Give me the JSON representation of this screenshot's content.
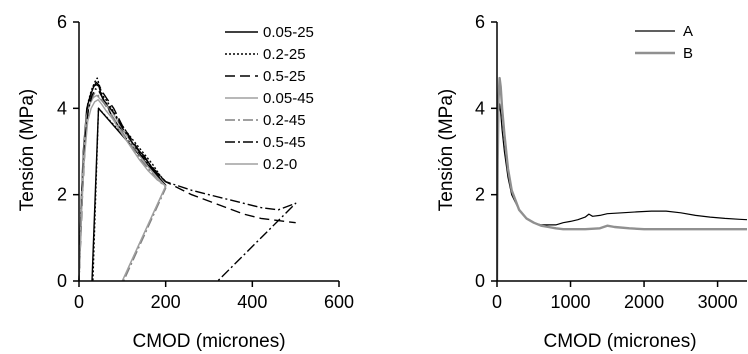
{
  "chart_data": [
    {
      "type": "line",
      "xlabel": "CMOD (micrones)",
      "ylabel": "Tensión (MPa)",
      "xlim": [
        0,
        600
      ],
      "ylim": [
        0,
        6
      ],
      "xticks": [
        0,
        200,
        400,
        600
      ],
      "yticks": [
        0,
        2,
        4,
        6
      ],
      "grid": false,
      "legend": "top-right",
      "series": [
        {
          "name": "0.05-25",
          "color": "#000000",
          "dash": "solid",
          "x": [
            0,
            5,
            10,
            18,
            26,
            34,
            40,
            45,
            50,
            56,
            64,
            72,
            90,
            110,
            130,
            150,
            170,
            185,
            190,
            195,
            200,
            45,
            30
          ],
          "y": [
            0,
            1.8,
            3.0,
            4.0,
            4.3,
            4.5,
            4.6,
            4.55,
            4.35,
            4.2,
            4.1,
            3.9,
            3.6,
            3.4,
            3.1,
            2.9,
            2.6,
            2.4,
            2.3,
            2.25,
            2.22,
            4.0,
            0
          ]
        },
        {
          "name": "0.2-25",
          "color": "#000000",
          "dash": "2,2",
          "x": [
            0,
            6,
            12,
            20,
            28,
            36,
            42,
            48,
            54,
            62,
            72,
            90,
            110,
            130,
            150,
            170,
            190,
            200,
            45,
            32
          ],
          "y": [
            0,
            1.9,
            3.2,
            4.1,
            4.4,
            4.6,
            4.7,
            4.5,
            4.3,
            4.2,
            4.05,
            3.75,
            3.45,
            3.2,
            2.95,
            2.7,
            2.4,
            2.3,
            4.0,
            0
          ]
        },
        {
          "name": "0.5-25",
          "color": "#000000",
          "dash": "10,5",
          "x": [
            0,
            8,
            16,
            24,
            32,
            40,
            48,
            56,
            66,
            80,
            100,
            120,
            140,
            160,
            180,
            200,
            230,
            260,
            300,
            340,
            380,
            420,
            460,
            500
          ],
          "y": [
            0,
            2.0,
            3.5,
            4.2,
            4.5,
            4.55,
            4.5,
            4.35,
            4.2,
            4.0,
            3.6,
            3.3,
            3.0,
            2.75,
            2.5,
            2.3,
            2.15,
            2.0,
            1.85,
            1.7,
            1.55,
            1.45,
            1.4,
            1.35
          ]
        },
        {
          "name": "0.05-45",
          "color": "#a0a0a0",
          "dash": "solid",
          "x": [
            0,
            5,
            10,
            17,
            25,
            33,
            41,
            50,
            60,
            75,
            95,
            115,
            135,
            155,
            175,
            195,
            200,
            100
          ],
          "y": [
            0,
            1.7,
            2.9,
            3.8,
            4.1,
            4.25,
            4.3,
            4.2,
            4.1,
            3.95,
            3.6,
            3.3,
            3.0,
            2.7,
            2.45,
            2.25,
            2.2,
            0
          ]
        },
        {
          "name": "0.2-45",
          "color": "#808080",
          "dash": "10,3,2,3",
          "x": [
            0,
            6,
            12,
            20,
            28,
            36,
            44,
            52,
            62,
            78,
            100,
            120,
            140,
            160,
            180,
            198,
            200,
            103
          ],
          "y": [
            0,
            1.8,
            3.0,
            3.9,
            4.2,
            4.35,
            4.3,
            4.2,
            4.05,
            3.8,
            3.45,
            3.15,
            2.85,
            2.6,
            2.35,
            2.2,
            2.15,
            0
          ]
        },
        {
          "name": "0.5-45",
          "color": "#000000",
          "dash": "10,3,2,3",
          "x": [
            0,
            7,
            14,
            22,
            30,
            38,
            46,
            54,
            64,
            80,
            100,
            120,
            140,
            160,
            180,
            200,
            230,
            260,
            300,
            340,
            380,
            420,
            460,
            500,
            320
          ],
          "y": [
            0,
            2.0,
            3.3,
            4.0,
            4.3,
            4.45,
            4.4,
            4.25,
            4.1,
            3.9,
            3.55,
            3.25,
            2.95,
            2.7,
            2.5,
            2.3,
            2.2,
            2.1,
            2.0,
            1.9,
            1.8,
            1.7,
            1.65,
            1.8,
            0
          ]
        },
        {
          "name": "0.2-0",
          "color": "#a0a0a0",
          "dash": "solid",
          "x": [
            0,
            6,
            12,
            20,
            28,
            36,
            44,
            52,
            62,
            78,
            100,
            120,
            140,
            160,
            180,
            200,
            100
          ],
          "y": [
            0,
            1.6,
            2.8,
            3.7,
            4.0,
            4.15,
            4.2,
            4.1,
            3.95,
            3.75,
            3.4,
            3.1,
            2.8,
            2.55,
            2.35,
            2.2,
            0
          ]
        }
      ]
    },
    {
      "type": "line",
      "xlabel": "CMOD (micrones)",
      "ylabel": "Tensión (MPa)",
      "xlim": [
        0,
        3400
      ],
      "ylim": [
        0,
        6
      ],
      "xticks": [
        0,
        1000,
        2000,
        3000
      ],
      "yticks": [
        0,
        2,
        4,
        6
      ],
      "grid": false,
      "legend": "top-right",
      "series": [
        {
          "name": "A",
          "color": "#000000",
          "width": 1.2,
          "x": [
            0,
            10,
            20,
            35,
            50,
            70,
            100,
            150,
            200,
            300,
            400,
            500,
            600,
            700,
            800,
            900,
            1000,
            1100,
            1200,
            1250,
            1300,
            1400,
            1500,
            1700,
            1900,
            2100,
            2300,
            2500,
            2700,
            2900,
            3100,
            3300,
            3400
          ],
          "y": [
            0,
            2.5,
            3.8,
            4.1,
            3.9,
            3.5,
            3.0,
            2.4,
            2.0,
            1.65,
            1.45,
            1.35,
            1.3,
            1.3,
            1.3,
            1.35,
            1.38,
            1.42,
            1.48,
            1.55,
            1.5,
            1.52,
            1.56,
            1.58,
            1.6,
            1.62,
            1.62,
            1.58,
            1.52,
            1.48,
            1.45,
            1.43,
            1.42
          ]
        },
        {
          "name": "B",
          "color": "#909090",
          "width": 2.4,
          "x": [
            0,
            10,
            20,
            35,
            50,
            70,
            100,
            150,
            200,
            300,
            400,
            500,
            600,
            700,
            800,
            900,
            1000,
            1200,
            1400,
            1500,
            1600,
            1800,
            2000,
            2200,
            2400,
            2600,
            2800,
            3000,
            3200,
            3400
          ],
          "y": [
            0,
            2.8,
            4.2,
            4.7,
            4.5,
            4.0,
            3.4,
            2.6,
            2.1,
            1.65,
            1.45,
            1.35,
            1.28,
            1.25,
            1.22,
            1.2,
            1.2,
            1.2,
            1.22,
            1.28,
            1.25,
            1.22,
            1.2,
            1.2,
            1.2,
            1.2,
            1.2,
            1.2,
            1.2,
            1.2
          ]
        }
      ]
    }
  ]
}
